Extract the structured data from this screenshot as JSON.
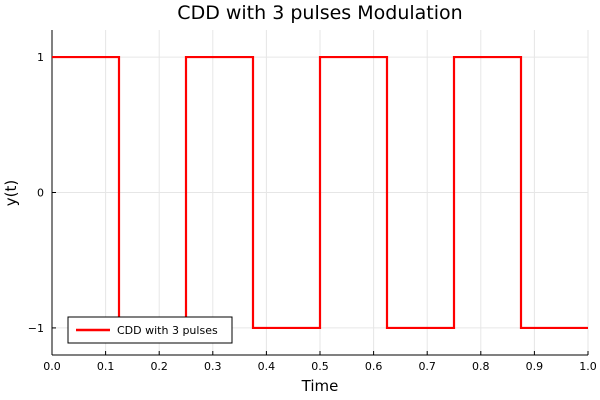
{
  "chart_data": {
    "type": "line",
    "title": "CDD with 3 pulses Modulation",
    "xlabel": "Time",
    "ylabel": "y(t)",
    "xlim": [
      0,
      1.0
    ],
    "ylim": [
      -1.2,
      1.2
    ],
    "xticks": [
      0.0,
      0.1,
      0.2,
      0.3,
      0.4,
      0.5,
      0.6,
      0.7,
      0.8,
      0.9,
      1.0
    ],
    "xtick_labels": [
      "0.0",
      "0.1",
      "0.2",
      "0.3",
      "0.4",
      "0.5",
      "0.6",
      "0.7",
      "0.8",
      "0.9",
      "1.0"
    ],
    "yticks": [
      -1,
      0,
      1
    ],
    "ytick_labels": [
      "−1",
      "0",
      "1"
    ],
    "grid": true,
    "legend_position": "bottom-left",
    "series": [
      {
        "name": "CDD with 3 pulses",
        "color": "#ff0000",
        "x": [
          0.0,
          0.125,
          0.125,
          0.25,
          0.25,
          0.375,
          0.375,
          0.5,
          0.5,
          0.625,
          0.625,
          0.75,
          0.75,
          0.875,
          0.875,
          1.0
        ],
        "y": [
          1,
          1,
          -1,
          -1,
          1,
          1,
          -1,
          -1,
          1,
          1,
          -1,
          -1,
          1,
          1,
          -1,
          -1
        ]
      }
    ]
  }
}
